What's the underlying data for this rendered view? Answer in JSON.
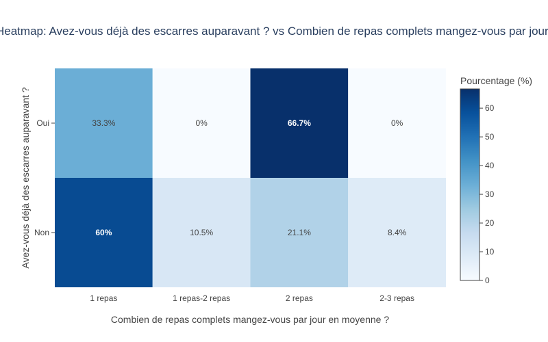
{
  "chart_data": {
    "type": "heatmap",
    "title": "Heatmap: Avez-vous déjà des escarres auparavant ? vs Combien de repas complets mangez-vous par jour en moyenne ?",
    "xlabel": "Combien de repas complets mangez-vous par jour en moyenne ?",
    "ylabel": "Avez-vous déjà des escarres auparavant ?",
    "x_categories": [
      "1 repas",
      "1 repas-2 repas",
      "2 repas",
      "2-3 repas"
    ],
    "y_categories": [
      "Oui",
      "Non"
    ],
    "values": [
      [
        33.3,
        0,
        66.7,
        0
      ],
      [
        60,
        10.5,
        21.1,
        8.4
      ]
    ],
    "cell_labels": [
      [
        "33.3%",
        "0%",
        "66.7%",
        "0%"
      ],
      [
        "60%",
        "10.5%",
        "21.1%",
        "8.4%"
      ]
    ],
    "colorscale": "Blues",
    "colorbar": {
      "title": "Pourcentage (%)",
      "range": [
        0,
        66.7
      ],
      "ticks": [
        0,
        10,
        20,
        30,
        40,
        50,
        60
      ]
    }
  }
}
